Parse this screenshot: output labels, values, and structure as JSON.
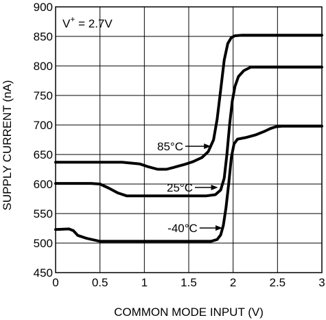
{
  "chart_data": {
    "type": "line",
    "xlabel": "COMMON MODE INPUT (V)",
    "ylabel": "SUPPLY CURRENT (nA)",
    "xlim": [
      0,
      3
    ],
    "ylim": [
      450,
      900
    ],
    "xticks": [
      0,
      0.5,
      1,
      1.5,
      2,
      2.5,
      3
    ],
    "xtick_labels": [
      "0",
      "0.5",
      "1",
      "1.5",
      "2",
      "2.5",
      "3"
    ],
    "yticks": [
      450,
      500,
      550,
      600,
      650,
      700,
      750,
      800,
      850,
      900
    ],
    "ytick_labels": [
      "450",
      "500",
      "550",
      "600",
      "650",
      "700",
      "750",
      "800",
      "850",
      "900"
    ],
    "grid": true,
    "annotations": [
      {
        "id": "supply",
        "main": "V",
        "sup": "+",
        "rest": " = 2.7V"
      },
      {
        "id": "t85",
        "text": "85°C",
        "target": [
          1.78,
          651
        ]
      },
      {
        "id": "t25",
        "text": "25°C",
        "target": [
          1.86,
          585
        ]
      },
      {
        "id": "tm40",
        "text": "-40°C",
        "target": [
          1.91,
          525
        ]
      }
    ],
    "series": [
      {
        "label_ref": "t85",
        "x": [
          0,
          0.5,
          0.75,
          0.95,
          1.05,
          1.15,
          1.25,
          1.35,
          1.45,
          1.55,
          1.65,
          1.72,
          1.78,
          1.82,
          1.86,
          1.9,
          1.94,
          1.98,
          2.02,
          2.1,
          2.3,
          2.6,
          3.0
        ],
        "y": [
          637,
          637,
          637,
          634,
          629,
          625,
          625,
          629,
          633,
          638,
          645,
          655,
          675,
          710,
          760,
          810,
          838,
          848,
          851,
          852,
          852,
          852,
          852
        ]
      },
      {
        "label_ref": "t25",
        "x": [
          0,
          0.4,
          0.5,
          0.6,
          0.7,
          0.8,
          0.9,
          1.2,
          1.5,
          1.7,
          1.8,
          1.86,
          1.9,
          1.93,
          1.96,
          1.99,
          2.02,
          2.06,
          2.12,
          2.2,
          2.4,
          2.7,
          3.0
        ],
        "y": [
          601,
          601,
          600,
          593,
          585,
          580,
          580,
          580,
          580,
          580,
          582,
          590,
          610,
          650,
          700,
          740,
          765,
          782,
          792,
          798,
          798,
          798,
          798
        ]
      },
      {
        "label_ref": "tm40",
        "x": [
          0,
          0.15,
          0.2,
          0.25,
          0.35,
          0.5,
          0.6,
          1.0,
          1.4,
          1.75,
          1.82,
          1.86,
          1.89,
          1.92,
          1.95,
          1.98,
          2.01,
          2.05,
          2.15,
          2.25,
          2.3,
          2.35,
          2.42,
          2.48,
          2.55,
          2.7,
          3.0
        ],
        "y": [
          523,
          524,
          521,
          513,
          508,
          503,
          503,
          503,
          503,
          503,
          506,
          514,
          530,
          560,
          600,
          645,
          668,
          676,
          679,
          683,
          686,
          689,
          694,
          697,
          698,
          698,
          698
        ]
      }
    ]
  }
}
